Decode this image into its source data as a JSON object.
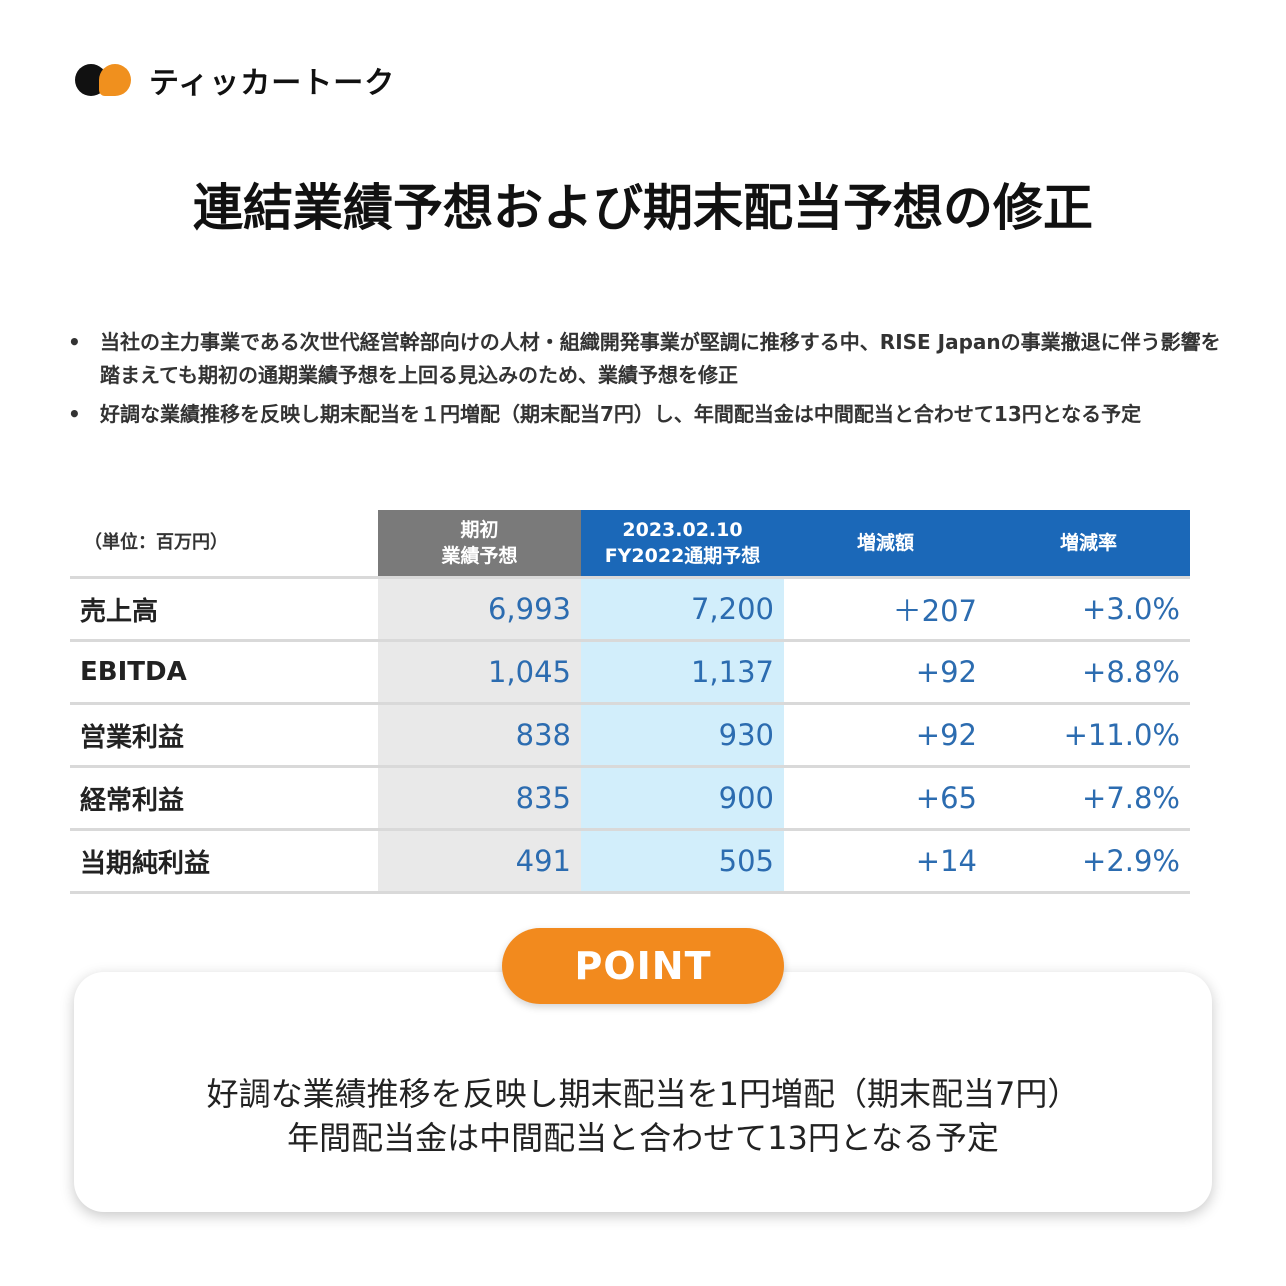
{
  "brand": {
    "name": "ティッカートーク",
    "colors": {
      "black": "#111111",
      "orange": "#f0901e"
    }
  },
  "title": "連結業績予想および期末配当予想の修正",
  "bullets": [
    "当社の主力事業である次世代経営幹部向けの人材・組織開発事業が堅調に推移する中、RISE Japanの事業撤退に伴う影響を踏まえても期初の通期業績予想を上回る見込みのため、業績予想を修正",
    "好調な業績推移を反映し期末配当を１円増配（期末配当7円）し、年間配当金は中間配当と合わせて13円となる予定"
  ],
  "bullet_symbol": "•",
  "table": {
    "unit": "（単位：百万円）",
    "headers": {
      "initial": [
        "期初",
        "業績予想"
      ],
      "revised": [
        "2023.02.10",
        "FY2022通期予想"
      ],
      "diff": "増減額",
      "rate": "増減率"
    },
    "rows": [
      {
        "label": "売上高",
        "initial": "6,993",
        "revised": "7,200",
        "diff": "＋207",
        "rate": "+3.0%"
      },
      {
        "label": "EBITDA",
        "initial": "1,045",
        "revised": "1,137",
        "diff": "+92",
        "rate": "+8.8%"
      },
      {
        "label": "営業利益",
        "initial": "838",
        "revised": "930",
        "diff": "+92",
        "rate": "+11.0%"
      },
      {
        "label": "経常利益",
        "initial": "835",
        "revised": "900",
        "diff": "+65",
        "rate": "+7.8%"
      },
      {
        "label": "当期純利益",
        "initial": "491",
        "revised": "505",
        "diff": "+14",
        "rate": "+2.9%"
      }
    ],
    "colors": {
      "header_gray": "#7a7a7a",
      "header_blue": "#1b68b8",
      "value_blue": "#2c6cb0"
    }
  },
  "point": {
    "label": "POINT",
    "lines": [
      "好調な業績推移を反映し期末配当を1円増配（期末配当7円）",
      "年間配当金は中間配当と合わせて13円となる予定"
    ],
    "color": "#f28a1e"
  }
}
